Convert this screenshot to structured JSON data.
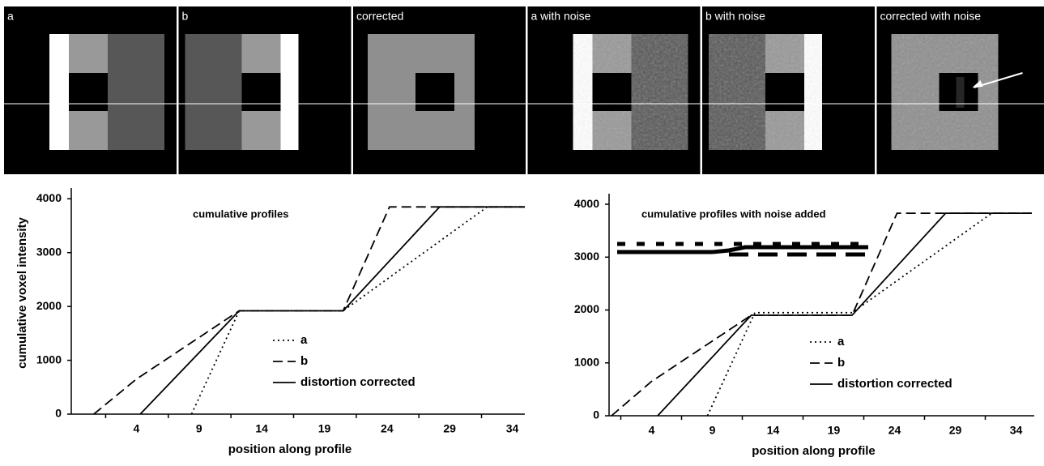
{
  "panels": [
    "a",
    "b",
    "corrected",
    "a with noise",
    "b with noise",
    "corrected with noise"
  ],
  "chart_data": [
    {
      "type": "line",
      "annotation": "cumulative profiles",
      "x_label": "position along profile",
      "y_label": "cumulative voxel intensity",
      "xlim": [
        -1.2,
        35
      ],
      "ylim": [
        0,
        4200
      ],
      "xticks": [
        4,
        9,
        14,
        19,
        24,
        29,
        34
      ],
      "yticks": [
        0,
        1000,
        2000,
        3000,
        4000
      ],
      "series": [
        {
          "name": "a",
          "color": "#000000",
          "dash": "dotted",
          "x": [
            8.4,
            12.2,
            20.5,
            32,
            35
          ],
          "values": [
            0,
            1920,
            1920,
            3850,
            3850
          ]
        },
        {
          "name": "b",
          "color": "#000000",
          "dash": "dashed",
          "x": [
            0.6,
            4,
            12.2,
            20.5,
            24.2,
            35
          ],
          "values": [
            0,
            650,
            1920,
            1920,
            3850,
            3850
          ]
        },
        {
          "name": "distortion corrected",
          "color": "#000000",
          "dash": "solid",
          "x": [
            4.3,
            12.2,
            20.5,
            28.2,
            35
          ],
          "values": [
            0,
            1920,
            1920,
            3850,
            3850
          ]
        }
      ]
    },
    {
      "type": "line",
      "annotation": "cumulative profiles with noise added",
      "x_label": "position along profile",
      "xlim": [
        0.5,
        35.5
      ],
      "ylim": [
        0,
        4200
      ],
      "xticks": [
        4,
        9,
        14,
        19,
        24,
        29,
        34
      ],
      "yticks": [
        0,
        1000,
        2000,
        3000,
        4000
      ],
      "series": [
        {
          "name": "a",
          "color": "#000000",
          "dash": "dotted",
          "x": [
            8.6,
            12.5,
            20.5,
            32,
            35.3
          ],
          "values": [
            0,
            1950,
            1950,
            3830,
            3830
          ]
        },
        {
          "name": "b",
          "color": "#000000",
          "dash": "dashed",
          "x": [
            0.7,
            4,
            12.2,
            20.5,
            24.2,
            35.3
          ],
          "values": [
            0,
            650,
            1900,
            1900,
            3830,
            3830
          ]
        },
        {
          "name": "distortion corrected",
          "color": "#000000",
          "dash": "solid",
          "x": [
            4.5,
            12.2,
            20.5,
            28.2,
            35.3
          ],
          "values": [
            0,
            1900,
            1900,
            3830,
            3830
          ]
        }
      ]
    }
  ]
}
